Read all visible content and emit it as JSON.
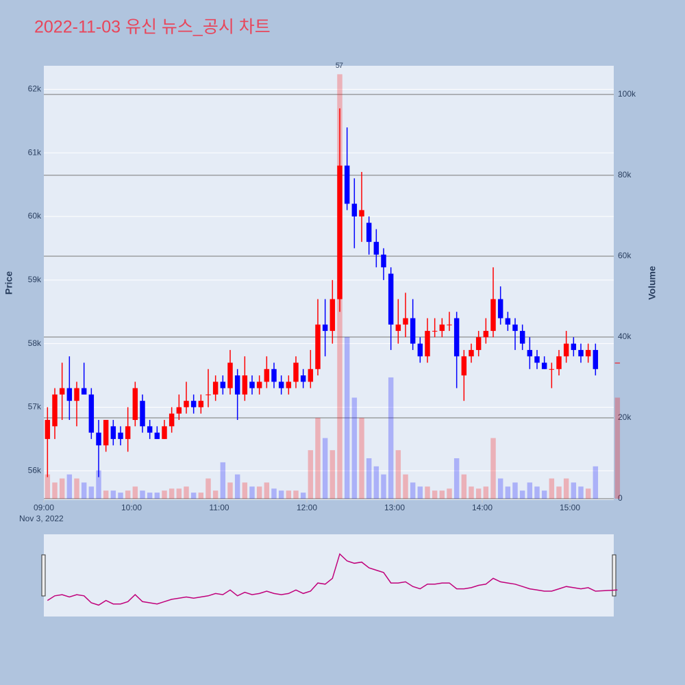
{
  "chart_data": {
    "type": "candlestick",
    "title": "2022-11-03 유신 뉴스_공시 차트",
    "ylabel": "Price",
    "y2label": "Volume",
    "date_label": "Nov 3, 2022",
    "increasing_color": "#ff0000",
    "decreasing_color": "#0000ff",
    "x": [
      "09:00",
      "09:05",
      "09:10",
      "09:15",
      "09:20",
      "09:25",
      "09:30",
      "09:35",
      "09:40",
      "09:45",
      "09:50",
      "09:55",
      "10:00",
      "10:05",
      "10:10",
      "10:15",
      "10:20",
      "10:25",
      "10:30",
      "10:35",
      "10:40",
      "10:45",
      "10:50",
      "10:55",
      "11:00",
      "11:05",
      "11:10",
      "11:15",
      "11:20",
      "11:25",
      "11:30",
      "11:35",
      "11:40",
      "11:45",
      "11:50",
      "11:55",
      "12:00",
      "12:05",
      "12:10",
      "12:15",
      "12:20",
      "12:25",
      "12:30",
      "12:35",
      "12:40",
      "12:45",
      "12:50",
      "12:55",
      "13:00",
      "13:05",
      "13:10",
      "13:15",
      "13:20",
      "13:25",
      "13:30",
      "13:35",
      "13:40",
      "13:45",
      "13:50",
      "13:55",
      "14:00",
      "14:05",
      "14:10",
      "14:15",
      "14:20",
      "14:25",
      "14:30",
      "14:35",
      "14:40",
      "14:45",
      "14:50",
      "14:55",
      "15:00",
      "15:05",
      "15:10",
      "15:15",
      "15:30"
    ],
    "open": [
      56500,
      56700,
      57200,
      57300,
      57100,
      57300,
      57200,
      56600,
      56400,
      56700,
      56600,
      56500,
      56800,
      57100,
      56700,
      56600,
      56500,
      56700,
      56900,
      57000,
      57100,
      57000,
      57200,
      57200,
      57400,
      57300,
      57500,
      57200,
      57400,
      57300,
      57400,
      57600,
      57400,
      57300,
      57400,
      57500,
      57400,
      57600,
      58300,
      58200,
      58700,
      60800,
      60200,
      60000,
      59900,
      59600,
      59400,
      59100,
      58200,
      58300,
      58400,
      58000,
      57800,
      58200,
      58200,
      58300,
      58400,
      57500,
      57800,
      57900,
      58100,
      58200,
      58700,
      58400,
      58300,
      58200,
      57900,
      57800,
      57700,
      57600,
      57600,
      57800,
      58000,
      57900,
      57800,
      57900,
      57700
    ],
    "high": [
      57000,
      57300,
      57700,
      57800,
      57400,
      57700,
      57300,
      56800,
      56800,
      56800,
      56700,
      57000,
      57400,
      57200,
      56800,
      56700,
      56800,
      57000,
      57200,
      57400,
      57200,
      57200,
      57600,
      57500,
      57500,
      57900,
      57600,
      57800,
      57500,
      57500,
      57800,
      57700,
      57500,
      57500,
      57800,
      57600,
      57900,
      58700,
      58700,
      59000,
      61700,
      61400,
      60600,
      60700,
      60000,
      59800,
      59500,
      59200,
      58700,
      58800,
      58700,
      58100,
      58400,
      58400,
      58400,
      58500,
      58500,
      57900,
      58000,
      58200,
      58400,
      59200,
      58900,
      58500,
      58400,
      58300,
      58100,
      57900,
      57800,
      57700,
      57900,
      58200,
      58100,
      58000,
      58000,
      58000,
      57700
    ],
    "low": [
      55900,
      56500,
      56800,
      56800,
      56700,
      57200,
      56500,
      55900,
      56300,
      56400,
      56400,
      56300,
      56700,
      56600,
      56500,
      56500,
      56500,
      56600,
      56800,
      56900,
      56900,
      56900,
      57000,
      57100,
      57200,
      57200,
      56800,
      57100,
      57200,
      57200,
      57300,
      57300,
      57200,
      57200,
      57300,
      57300,
      57300,
      57500,
      57800,
      58000,
      58500,
      60100,
      59500,
      59600,
      59400,
      59200,
      59000,
      57900,
      58000,
      58100,
      57900,
      57700,
      57700,
      58100,
      58100,
      58200,
      57300,
      57100,
      57700,
      57800,
      58000,
      58100,
      58300,
      58200,
      57900,
      57900,
      57600,
      57600,
      57600,
      57300,
      57500,
      57700,
      57800,
      57700,
      57700,
      57500,
      57700
    ],
    "close": [
      56800,
      57200,
      57300,
      57100,
      57300,
      57200,
      56600,
      56400,
      56800,
      56500,
      56500,
      56700,
      57300,
      56700,
      56600,
      56500,
      56700,
      56900,
      57000,
      57100,
      57000,
      57100,
      57200,
      57400,
      57300,
      57700,
      57200,
      57500,
      57300,
      57400,
      57600,
      57400,
      57300,
      57400,
      57700,
      57400,
      57600,
      58300,
      58200,
      58700,
      60800,
      60200,
      60000,
      60100,
      59600,
      59400,
      59200,
      58300,
      58300,
      58400,
      58000,
      57800,
      58200,
      58200,
      58300,
      58300,
      57800,
      57800,
      57900,
      58100,
      58200,
      58700,
      58400,
      58300,
      58200,
      58000,
      57800,
      57700,
      57600,
      57600,
      57800,
      58000,
      57900,
      57800,
      57900,
      57600,
      57700
    ],
    "volume": [
      6000,
      4000,
      5000,
      6000,
      5000,
      4000,
      3000,
      7000,
      2000,
      2000,
      1500,
      2000,
      3000,
      2000,
      1500,
      1500,
      2000,
      2500,
      2500,
      3000,
      1500,
      1500,
      5000,
      2000,
      9000,
      4000,
      6000,
      4000,
      3000,
      3000,
      4000,
      2500,
      2000,
      2000,
      2000,
      1500,
      12000,
      20000,
      15000,
      12000,
      105000,
      40000,
      25000,
      20000,
      10000,
      8000,
      6000,
      30000,
      12000,
      6000,
      4000,
      3000,
      3000,
      2000,
      2000,
      2500,
      10000,
      6000,
      3000,
      2500,
      3000,
      15000,
      5000,
      3000,
      4000,
      2000,
      4000,
      3000,
      2000,
      5000,
      3000,
      5000,
      4000,
      3000,
      2500,
      8000,
      25000
    ],
    "annotations": [
      {
        "x": "12:21",
        "text": "5"
      },
      {
        "x": "12:22",
        "text": "7"
      }
    ],
    "xlim": [
      "09:00",
      "15:30"
    ],
    "xticks": [
      "09:00",
      "10:00",
      "11:00",
      "12:00",
      "13:00",
      "14:00",
      "15:00"
    ],
    "ylim": [
      55540,
      62370
    ],
    "yticks": [
      {
        "value": 56000,
        "label": "56k"
      },
      {
        "value": 57000,
        "label": "57k"
      },
      {
        "value": 58000,
        "label": "58k"
      },
      {
        "value": 59000,
        "label": "59k"
      },
      {
        "value": 60000,
        "label": "60k"
      },
      {
        "value": 61000,
        "label": "61k"
      },
      {
        "value": 62000,
        "label": "62k"
      }
    ],
    "y2lim": [
      0,
      107100
    ],
    "y2ticks": [
      0,
      {
        "value": 20000,
        "label": "20k"
      },
      {
        "value": 40000,
        "label": "40k"
      },
      {
        "value": 60000,
        "label": "60k"
      },
      {
        "value": 80000,
        "label": "80k"
      },
      {
        "value": 100000,
        "label": "100k"
      }
    ],
    "grid": true,
    "rangeslider": true
  }
}
